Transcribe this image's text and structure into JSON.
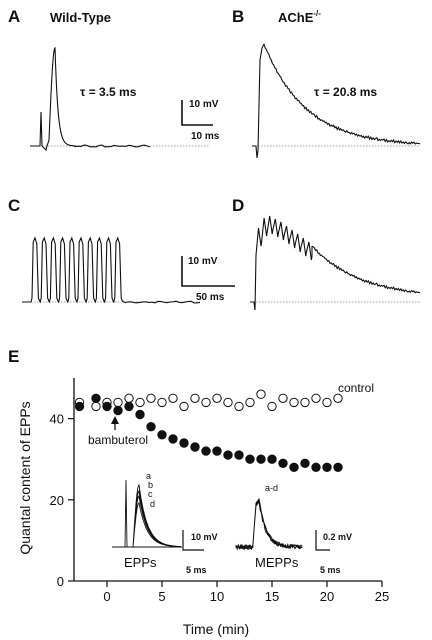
{
  "panels": {
    "A": {
      "label": "A",
      "title": "Wild-Type",
      "tau": "τ = 3.5 ms",
      "scale_v": "10 mV",
      "scale_t": "10 ms"
    },
    "B": {
      "label": "B",
      "title": "AChE",
      "title_sup": "-/-",
      "tau": "τ = 20.8 ms"
    },
    "C": {
      "label": "C",
      "scale_v": "10  mV",
      "scale_t": "50 ms"
    },
    "D": {
      "label": "D"
    },
    "E": {
      "label": "E"
    }
  },
  "chart_data": {
    "type": "scatter",
    "xlabel": "Time (min)",
    "ylabel": "Quantal content of EPPs",
    "xlim": [
      -3,
      25
    ],
    "ylim": [
      0,
      50
    ],
    "xticks": [
      0,
      5,
      10,
      15,
      20,
      25
    ],
    "yticks": [
      0,
      20,
      40
    ],
    "series": [
      {
        "name": "control",
        "marker": "open-circle",
        "x": [
          -2.5,
          -1,
          0,
          1,
          2,
          3,
          4,
          5,
          6,
          7,
          8,
          9,
          10,
          11,
          12,
          13,
          14,
          15,
          16,
          17,
          18,
          19,
          20,
          21
        ],
        "y": [
          44,
          43,
          44,
          44,
          45,
          44,
          45,
          44,
          45,
          43,
          45,
          44,
          45,
          44,
          43,
          44,
          46,
          43,
          45,
          44,
          44,
          45,
          44,
          45
        ]
      },
      {
        "name": "bambuterol",
        "marker": "filled-circle",
        "x": [
          -2.5,
          -1,
          0,
          1,
          2,
          3,
          4,
          5,
          6,
          7,
          8,
          9,
          10,
          11,
          12,
          13,
          14,
          15,
          16,
          17,
          18,
          19,
          20,
          21
        ],
        "y": [
          43,
          45,
          43,
          42,
          43,
          41,
          38,
          36,
          35,
          34,
          33,
          32,
          32,
          31,
          31,
          30,
          30,
          30,
          29,
          28,
          29,
          28,
          28,
          28
        ]
      }
    ],
    "annotations": {
      "control_label": "control",
      "bambuterol_label": "bambuterol",
      "epp_label": "EPPs",
      "mepp_label": "MEPPs",
      "epp_traces": [
        "a",
        "b",
        "c",
        "d"
      ],
      "mepp_traces": "a-d",
      "epp_scale_v": "10 mV",
      "epp_scale_t": "5 ms",
      "mepp_scale_v": "0.2 mV",
      "mepp_scale_t": "5 ms"
    }
  }
}
